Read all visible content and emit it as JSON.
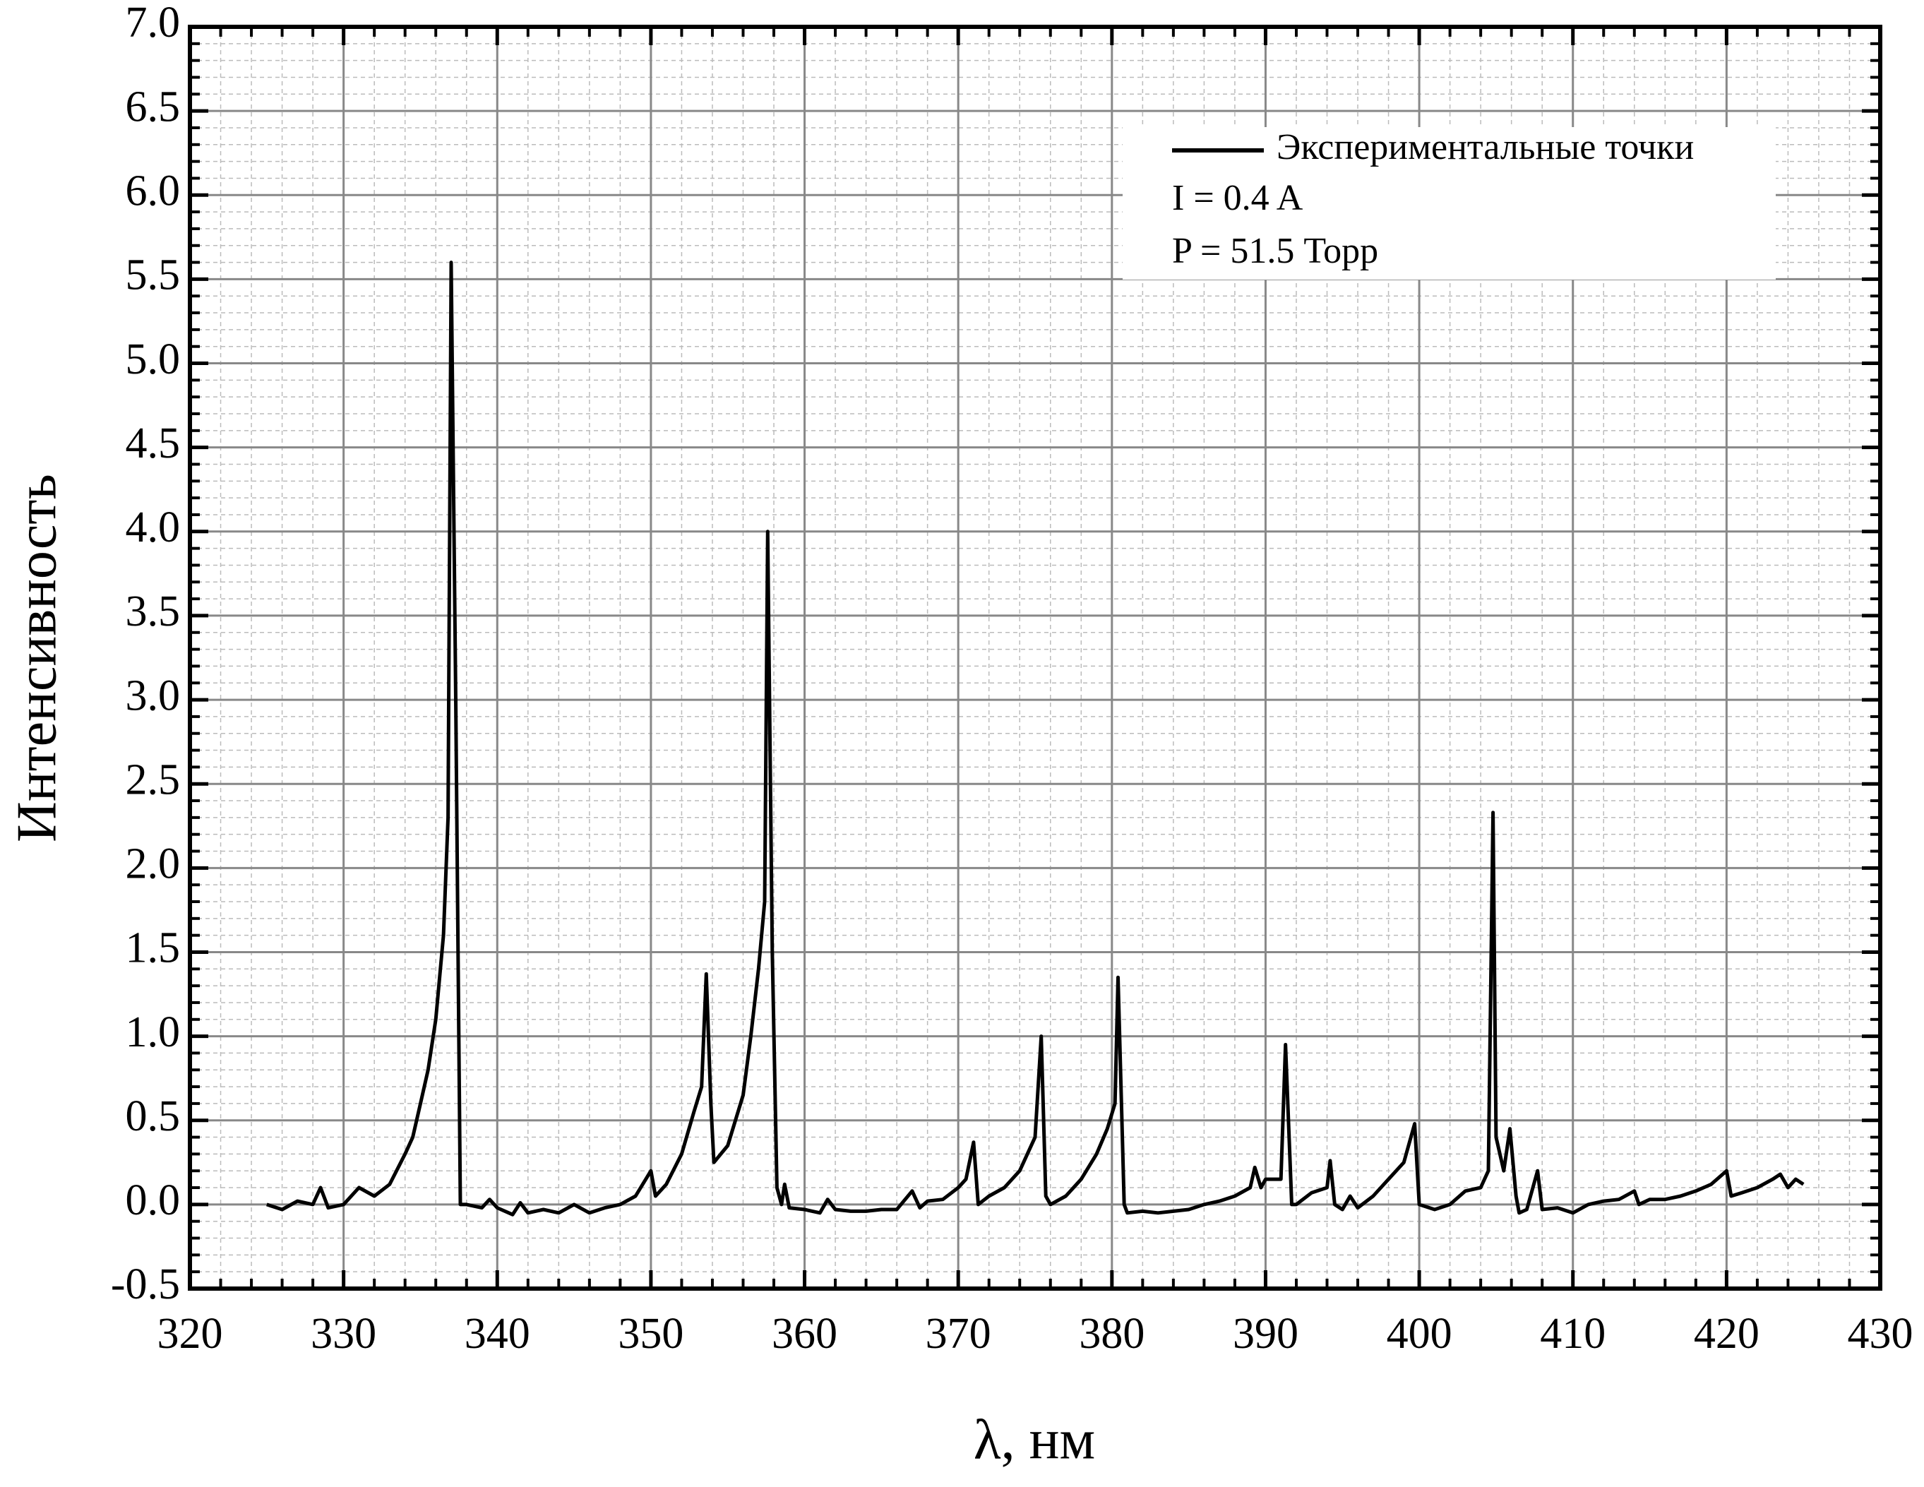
{
  "chart_data": {
    "type": "line",
    "x_label": "λ, нм",
    "y_label": "Интенсивность",
    "annotations": [
      "I = 0.4 A",
      "P = 51.5 Торр"
    ],
    "xlim": [
      320,
      430
    ],
    "xticks": [
      320,
      330,
      340,
      350,
      360,
      370,
      380,
      390,
      400,
      410,
      420,
      430
    ],
    "ylim": [
      -0.5,
      7
    ],
    "yticks": [
      -0.5,
      {
        "value": 0,
        "label": "0.0"
      },
      0.5,
      {
        "value": 1,
        "label": "1.0"
      },
      1.5,
      {
        "value": 2,
        "label": "2.0"
      },
      2.5,
      {
        "value": 3,
        "label": "3.0"
      },
      3.5,
      {
        "value": 4,
        "label": "4.0"
      },
      4.5,
      {
        "value": 5,
        "label": "5.0"
      },
      5.5,
      {
        "value": 6,
        "label": "6.0"
      },
      6.5,
      {
        "value": 7,
        "label": "7.0"
      }
    ],
    "grid": true,
    "legend": "upper right",
    "series": [
      {
        "name": "Экспериментальные точки",
        "color": "#000000",
        "x": [
          325,
          326,
          327,
          328,
          328.5,
          329,
          330,
          331,
          332,
          333,
          334,
          334.5,
          335,
          335.5,
          336,
          336.5,
          336.8,
          337,
          337.3,
          337.6,
          338,
          339,
          339.5,
          340,
          341,
          341.5,
          342,
          343,
          344,
          345,
          346,
          347,
          348,
          349,
          350,
          350.3,
          351,
          352,
          352.8,
          353.3,
          353.6,
          353.9,
          354.1,
          355,
          356,
          356.5,
          357,
          357.4,
          357.6,
          357.9,
          358.2,
          358.5,
          358.7,
          359,
          360,
          361,
          361.5,
          362,
          363,
          364,
          365,
          366,
          367,
          367.5,
          368,
          369,
          370,
          370.5,
          371,
          371.3,
          372,
          373,
          374,
          375,
          375.4,
          375.7,
          376,
          377,
          378,
          379,
          379.7,
          380.2,
          380.4,
          380.8,
          381,
          382,
          383,
          384,
          385,
          386,
          387,
          388,
          389,
          389.3,
          389.7,
          390,
          391,
          391.3,
          391.7,
          392,
          393,
          394,
          394.2,
          394.5,
          395,
          395.5,
          396,
          397,
          398,
          399,
          399.7,
          400,
          401,
          402,
          403,
          404,
          404.5,
          404.8,
          405,
          405.5,
          405.9,
          406.3,
          406.5,
          407,
          407.7,
          408,
          409,
          410,
          411,
          412,
          413,
          414,
          414.3,
          415,
          416,
          417,
          418,
          419,
          420,
          420.3,
          421,
          422,
          423,
          423.5,
          424,
          424.5,
          425
        ],
        "values": [
          0,
          -0.03,
          0.02,
          0,
          0.1,
          -0.02,
          0,
          0.1,
          0.05,
          0.12,
          0.3,
          0.4,
          0.6,
          0.8,
          1.1,
          1.6,
          2.3,
          5.6,
          3,
          0,
          0,
          -0.02,
          0.03,
          -0.02,
          -0.06,
          0.01,
          -0.05,
          -0.03,
          -0.05,
          0,
          -0.05,
          -0.02,
          0,
          0.05,
          0.2,
          0.05,
          0.12,
          0.3,
          0.55,
          0.7,
          1.37,
          0.6,
          0.25,
          0.35,
          0.65,
          1,
          1.4,
          1.8,
          4,
          1.5,
          0.1,
          0,
          0.12,
          -0.02,
          -0.03,
          -0.05,
          0.03,
          -0.03,
          -0.04,
          -0.04,
          -0.03,
          -0.03,
          0.08,
          -0.02,
          0.02,
          0.03,
          0.1,
          0.15,
          0.37,
          0,
          0.05,
          0.1,
          0.2,
          0.4,
          1,
          0.05,
          0,
          0.05,
          0.15,
          0.3,
          0.45,
          0.6,
          1.35,
          0,
          -0.05,
          -0.04,
          -0.05,
          -0.04,
          -0.03,
          0,
          0.02,
          0.05,
          0.1,
          0.22,
          0.1,
          0.15,
          0.15,
          0.95,
          0,
          0,
          0.07,
          0.1,
          0.26,
          0,
          -0.03,
          0.05,
          -0.02,
          0.05,
          0.15,
          0.25,
          0.48,
          0,
          -0.03,
          0,
          0.08,
          0.1,
          0.2,
          2.33,
          0.4,
          0.2,
          0.45,
          0.05,
          -0.05,
          -0.03,
          0.2,
          -0.03,
          -0.02,
          -0.05,
          0,
          0.02,
          0.03,
          0.08,
          0,
          0.03,
          0.03,
          0.05,
          0.08,
          0.12,
          0.2,
          0.05,
          0.07,
          0.1,
          0.15,
          0.18,
          0.1,
          0.15,
          0.12
        ]
      }
    ]
  }
}
